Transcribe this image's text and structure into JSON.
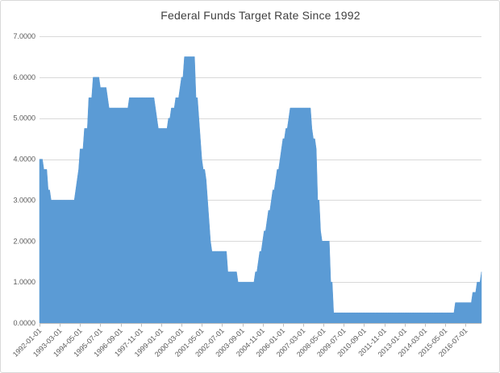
{
  "chart_data": {
    "type": "area",
    "title": "Federal Funds Target Rate Since 1992",
    "series_name": "Federal Funds Target Rate",
    "frequency": "monthly",
    "x_start": "1992-01",
    "x_end": "2017-06",
    "ylim": [
      0,
      7
    ],
    "grid": true,
    "legend_position": "none",
    "y_tick_labels": [
      "0.0000",
      "1.0000",
      "2.0000",
      "3.0000",
      "4.0000",
      "5.0000",
      "6.0000",
      "7.0000"
    ],
    "x_tick_interval_months": 14,
    "x_tick_labels": [
      "1992-01-01",
      "1993-03-01",
      "1994-05-01",
      "1995-07-01",
      "1996-09-01",
      "1997-11-01",
      "1999-01-01",
      "2000-03-01",
      "2001-05-01",
      "2002-07-01",
      "2003-09-01",
      "2004-11-01",
      "2006-01-01",
      "2007-03-01",
      "2008-05-01",
      "2009-07-01",
      "2010-09-01",
      "2011-11-01",
      "2013-01-01",
      "2014-03-01",
      "2015-05-01",
      "2016-07-01"
    ],
    "rate_steps": [
      [
        "1992-01",
        4.0
      ],
      [
        "1992-04",
        3.75
      ],
      [
        "1992-07",
        3.25
      ],
      [
        "1992-09",
        3.0
      ],
      [
        "1994-02",
        3.25
      ],
      [
        "1994-03",
        3.5
      ],
      [
        "1994-04",
        3.75
      ],
      [
        "1994-05",
        4.25
      ],
      [
        "1994-08",
        4.75
      ],
      [
        "1994-11",
        5.5
      ],
      [
        "1995-02",
        6.0
      ],
      [
        "1995-07",
        5.75
      ],
      [
        "1995-12",
        5.5
      ],
      [
        "1996-01",
        5.25
      ],
      [
        "1997-03",
        5.5
      ],
      [
        "1998-09",
        5.25
      ],
      [
        "1998-10",
        5.0
      ],
      [
        "1998-11",
        4.75
      ],
      [
        "1999-06",
        5.0
      ],
      [
        "1999-08",
        5.25
      ],
      [
        "1999-11",
        5.5
      ],
      [
        "2000-02",
        5.75
      ],
      [
        "2000-03",
        6.0
      ],
      [
        "2000-05",
        6.5
      ],
      [
        "2001-01",
        5.5
      ],
      [
        "2001-03",
        5.0
      ],
      [
        "2001-04",
        4.5
      ],
      [
        "2001-05",
        4.0
      ],
      [
        "2001-06",
        3.75
      ],
      [
        "2001-08",
        3.5
      ],
      [
        "2001-09",
        3.0
      ],
      [
        "2001-10",
        2.5
      ],
      [
        "2001-11",
        2.0
      ],
      [
        "2001-12",
        1.75
      ],
      [
        "2002-11",
        1.25
      ],
      [
        "2003-06",
        1.0
      ],
      [
        "2004-06",
        1.25
      ],
      [
        "2004-08",
        1.5
      ],
      [
        "2004-09",
        1.75
      ],
      [
        "2004-11",
        2.0
      ],
      [
        "2004-12",
        2.25
      ],
      [
        "2005-02",
        2.5
      ],
      [
        "2005-03",
        2.75
      ],
      [
        "2005-05",
        3.0
      ],
      [
        "2005-06",
        3.25
      ],
      [
        "2005-08",
        3.5
      ],
      [
        "2005-09",
        3.75
      ],
      [
        "2005-11",
        4.0
      ],
      [
        "2005-12",
        4.25
      ],
      [
        "2006-01",
        4.5
      ],
      [
        "2006-03",
        4.75
      ],
      [
        "2006-05",
        5.0
      ],
      [
        "2006-06",
        5.25
      ],
      [
        "2007-09",
        4.75
      ],
      [
        "2007-10",
        4.5
      ],
      [
        "2007-12",
        4.25
      ],
      [
        "2008-01",
        3.0
      ],
      [
        "2008-03",
        2.25
      ],
      [
        "2008-04",
        2.0
      ],
      [
        "2008-10",
        1.0
      ],
      [
        "2008-12",
        0.25
      ],
      [
        "2015-12",
        0.5
      ],
      [
        "2016-12",
        0.75
      ],
      [
        "2017-03",
        1.0
      ],
      [
        "2017-06",
        1.25
      ]
    ]
  },
  "style": {
    "area_color": "#5B9BD5",
    "gridline_color": "#D9D9D9",
    "axis_line_color": "#BFBFBF",
    "label_color": "#595959",
    "title_color": "#404040",
    "background": "#FFFFFF",
    "border_color": "#D9D9D9"
  }
}
